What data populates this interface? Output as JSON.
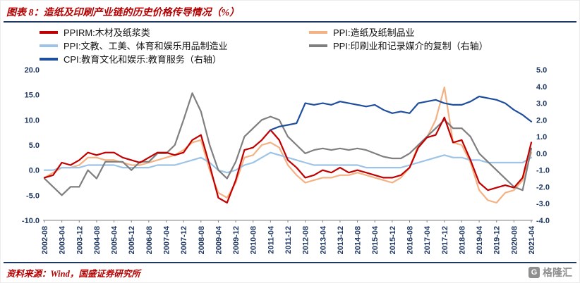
{
  "footer": {
    "source": "资料来源：Wind，国盛证券研究所",
    "logo_text": "格隆汇"
  },
  "colors": {
    "title_red": "#b40000",
    "rule_blue": "#1f3864",
    "axis_label": "#1f3864"
  },
  "chart_data": {
    "type": "line",
    "title": "图表 8：造纸及印刷产业链的历史价格传导情况（%）",
    "legend_position": "top",
    "grid": false,
    "x_start": "2002-08",
    "x_end": "2021-04",
    "x_step_months": 4,
    "x_tick_labels": [
      "2002-08",
      "2003-04",
      "2003-12",
      "2004-08",
      "2005-04",
      "2005-12",
      "2006-08",
      "2007-04",
      "2007-12",
      "2008-08",
      "2009-04",
      "2009-12",
      "2010-08",
      "2011-04",
      "2011-12",
      "2012-08",
      "2013-04",
      "2013-12",
      "2014-08",
      "2015-04",
      "2015-12",
      "2016-08",
      "2017-04",
      "2017-12",
      "2018-08",
      "2019-04",
      "2019-12",
      "2020-08",
      "2021-04"
    ],
    "left_axis": {
      "min": -10,
      "max": 20,
      "ticks": [
        "20.0",
        "15.0",
        "10.0",
        "5.0",
        "0.0",
        "-5.0",
        "-10.0"
      ]
    },
    "right_axis": {
      "min": -4,
      "max": 5,
      "ticks": [
        "5.0",
        "4.0",
        "3.0",
        "2.0",
        "1.0",
        "0.0",
        "-1.0",
        "-2.0",
        "-3.0",
        "-4.0"
      ]
    },
    "series": [
      {
        "key": "ppirm-wood-pulp",
        "name": "PPIRM:木材及纸浆类",
        "axis": "left",
        "color": "#c00000",
        "values": [
          -1.5,
          -1.0,
          1.5,
          1.0,
          2.0,
          3.5,
          3.0,
          3.5,
          3.5,
          2.5,
          2.0,
          1.5,
          2.5,
          3.5,
          3.5,
          3.0,
          3.5,
          6.0,
          7.0,
          1.0,
          -5.5,
          -6.5,
          -2.0,
          4.0,
          4.5,
          6.0,
          8.0,
          6.0,
          2.0,
          0.5,
          -1.5,
          -1.0,
          0.0,
          -0.5,
          0.5,
          -0.5,
          0.0,
          -0.5,
          -1.0,
          -1.5,
          -1.5,
          -1.0,
          0.5,
          4.5,
          6.5,
          7.0,
          10.5,
          5.5,
          6.0,
          2.0,
          -2.5,
          -4.0,
          -3.5,
          -3.0,
          -3.5,
          -1.5,
          5.5
        ]
      },
      {
        "key": "ppi-paper-products",
        "name": "PPI:造纸及纸制品业",
        "axis": "left",
        "color": "#f4b183",
        "values": [
          -1.5,
          -0.5,
          0.5,
          0.5,
          1.0,
          2.5,
          2.5,
          2.0,
          2.0,
          1.5,
          1.0,
          1.0,
          1.5,
          2.0,
          2.5,
          3.0,
          4.0,
          5.5,
          6.0,
          0.0,
          -4.5,
          -5.5,
          -2.5,
          2.5,
          3.0,
          5.0,
          5.5,
          4.5,
          1.0,
          -1.0,
          -2.5,
          -2.0,
          -1.5,
          -1.5,
          -1.0,
          -1.0,
          -0.5,
          -1.0,
          -1.5,
          -2.0,
          -2.5,
          -1.5,
          0.5,
          5.0,
          6.5,
          10.0,
          16.5,
          5.5,
          5.0,
          1.5,
          -4.0,
          -6.0,
          -6.5,
          -4.5,
          -4.0,
          -2.0,
          3.5
        ]
      },
      {
        "key": "ppi-culture-goods",
        "name": "PPI:文教、工美、体育和娱乐用品制造业",
        "axis": "left",
        "color": "#9dc3e6",
        "values": [
          0.0,
          0.0,
          0.5,
          0.5,
          0.5,
          1.0,
          1.0,
          1.0,
          1.0,
          0.5,
          0.5,
          0.5,
          0.5,
          1.0,
          1.0,
          1.0,
          1.5,
          2.0,
          2.5,
          1.5,
          0.0,
          -0.5,
          0.0,
          1.0,
          1.5,
          2.5,
          3.5,
          3.0,
          2.5,
          2.0,
          1.5,
          1.0,
          1.0,
          1.0,
          1.0,
          1.0,
          1.0,
          0.5,
          0.5,
          0.5,
          0.5,
          0.5,
          1.0,
          1.5,
          2.0,
          2.5,
          3.0,
          2.5,
          2.5,
          2.0,
          2.0,
          1.5,
          1.5,
          1.5,
          1.5,
          1.5,
          2.5
        ]
      },
      {
        "key": "ppi-printing-media",
        "name": "PPI:印刷业和记录媒介的复制（右轴）",
        "axis": "right",
        "color": "#7f7f7f",
        "values": [
          -1.5,
          -2.0,
          -2.5,
          -2.0,
          -2.0,
          -1.0,
          -1.5,
          -0.5,
          -0.5,
          -0.5,
          -1.0,
          -0.5,
          -0.5,
          0.0,
          0.0,
          0.5,
          2.0,
          3.6,
          2.5,
          0.5,
          -1.0,
          -1.5,
          -0.5,
          1.0,
          1.5,
          2.0,
          2.2,
          2.0,
          1.0,
          0.5,
          0.0,
          0.2,
          0.3,
          0.2,
          0.3,
          0.2,
          0.3,
          0.2,
          0.0,
          -0.2,
          -0.3,
          -0.3,
          0.0,
          0.5,
          1.0,
          1.5,
          2.0,
          1.5,
          1.5,
          1.0,
          0.0,
          -0.5,
          -1.0,
          -1.5,
          -2.0,
          -2.2,
          0.3
        ]
      },
      {
        "key": "cpi-education-service",
        "name": "CPI:教育文化和娱乐:教育服务（右轴）",
        "axis": "right",
        "color": "#1f4e9d",
        "values": [
          null,
          null,
          null,
          null,
          null,
          null,
          null,
          null,
          null,
          null,
          null,
          null,
          null,
          null,
          null,
          null,
          null,
          null,
          null,
          null,
          null,
          null,
          null,
          null,
          null,
          null,
          1.4,
          1.6,
          1.7,
          1.8,
          3.0,
          2.9,
          3.0,
          2.9,
          3.1,
          3.0,
          2.9,
          2.8,
          2.9,
          2.6,
          2.4,
          2.5,
          2.4,
          3.0,
          3.1,
          3.2,
          3.0,
          2.9,
          2.9,
          3.1,
          3.4,
          3.3,
          3.2,
          3.0,
          2.6,
          2.3,
          1.9
        ]
      }
    ]
  }
}
